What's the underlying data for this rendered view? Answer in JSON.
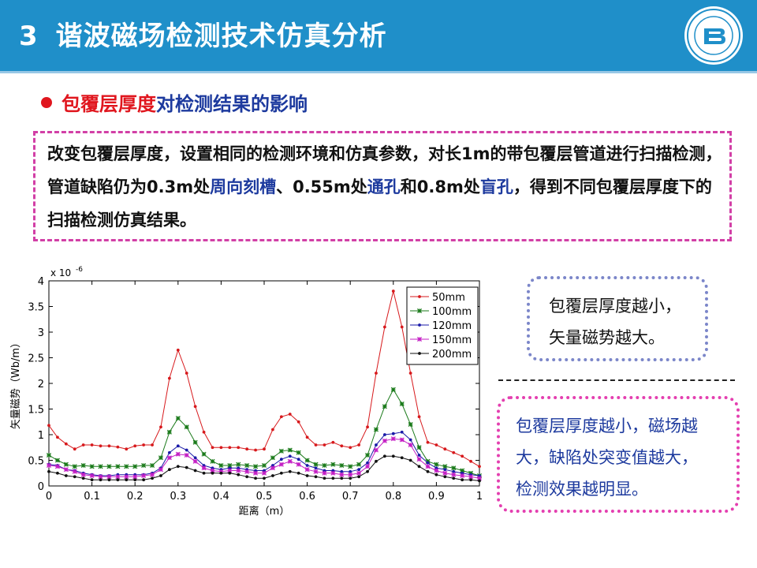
{
  "header": {
    "number": "3",
    "title": "谐波磁场检测技术仿真分析"
  },
  "subtitle": {
    "part1": "包覆层厚度",
    "part2": "对检测结果的影响"
  },
  "description": {
    "seg1": "改变包覆层厚度，设置相同的检测环境和仿真参数，对长1m的带包覆层管道进行扫描检测，管道缺陷仍为0.3m处",
    "hl1": "周向刻槽",
    "seg2": "、0.55m处",
    "hl2": "通孔",
    "seg3": "和0.8m处",
    "hl3": "盲孔",
    "seg4": "，得到不同包覆层厚度下的扫描检测仿真结果。"
  },
  "note_top": {
    "line1": "包覆层厚度越小，",
    "line2": "矢量磁势越大。"
  },
  "note_bottom": {
    "line1": "包覆层厚度越小，磁场越",
    "line2": "大，缺陷处突变值越大，",
    "line3": "检测效果越明显。"
  },
  "colors": {
    "header": "#1f8fc9",
    "accent_red": "#e0161e",
    "accent_blue": "#1d3a9e"
  },
  "chart_data": {
    "type": "line",
    "xlabel": "距离（m）",
    "ylabel": "矢量磁势（Wb/m）",
    "scale_label": "x 10",
    "scale_exp": "-6",
    "xlim": [
      0,
      1
    ],
    "ylim": [
      0,
      4
    ],
    "xticks": [
      "0",
      "0.1",
      "0.2",
      "0.3",
      "0.4",
      "0.5",
      "0.6",
      "0.7",
      "0.8",
      "0.9",
      "1"
    ],
    "yticks": [
      "0",
      "0.5",
      "1",
      "1.5",
      "2",
      "2.5",
      "3",
      "3.5",
      "4"
    ],
    "legend_position": "top-right",
    "x": [
      0,
      0.02,
      0.04,
      0.06,
      0.08,
      0.1,
      0.12,
      0.14,
      0.16,
      0.18,
      0.2,
      0.22,
      0.24,
      0.26,
      0.28,
      0.3,
      0.32,
      0.34,
      0.36,
      0.38,
      0.4,
      0.42,
      0.44,
      0.46,
      0.48,
      0.5,
      0.52,
      0.54,
      0.56,
      0.58,
      0.6,
      0.62,
      0.64,
      0.66,
      0.68,
      0.7,
      0.72,
      0.74,
      0.76,
      0.78,
      0.8,
      0.82,
      0.84,
      0.86,
      0.88,
      0.9,
      0.92,
      0.94,
      0.96,
      0.98,
      1.0
    ],
    "series": [
      {
        "name": "50mm",
        "color": "#d7191c",
        "marker": "dot",
        "values": [
          1.18,
          0.95,
          0.82,
          0.72,
          0.8,
          0.8,
          0.78,
          0.78,
          0.76,
          0.72,
          0.78,
          0.8,
          0.8,
          1.15,
          2.1,
          2.65,
          2.2,
          1.55,
          1.05,
          0.75,
          0.75,
          0.75,
          0.75,
          0.72,
          0.7,
          0.72,
          1.1,
          1.35,
          1.4,
          1.25,
          0.95,
          0.8,
          0.8,
          0.85,
          0.78,
          0.75,
          0.8,
          1.15,
          2.2,
          3.1,
          3.8,
          3.1,
          2.2,
          1.35,
          0.85,
          0.8,
          0.72,
          0.65,
          0.58,
          0.48,
          0.38
        ]
      },
      {
        "name": "100mm",
        "color": "#1a7a1a",
        "marker": "star",
        "values": [
          0.6,
          0.5,
          0.42,
          0.38,
          0.4,
          0.38,
          0.38,
          0.38,
          0.38,
          0.38,
          0.38,
          0.4,
          0.4,
          0.55,
          1.05,
          1.32,
          1.15,
          0.85,
          0.62,
          0.48,
          0.4,
          0.4,
          0.42,
          0.4,
          0.38,
          0.4,
          0.55,
          0.68,
          0.7,
          0.65,
          0.5,
          0.42,
          0.4,
          0.42,
          0.4,
          0.38,
          0.42,
          0.6,
          1.1,
          1.55,
          1.88,
          1.6,
          1.2,
          0.75,
          0.48,
          0.42,
          0.38,
          0.35,
          0.3,
          0.25,
          0.2
        ]
      },
      {
        "name": "120mm",
        "color": "#1a1aa8",
        "marker": "dot",
        "values": [
          0.42,
          0.4,
          0.32,
          0.3,
          0.25,
          0.22,
          0.2,
          0.2,
          0.22,
          0.22,
          0.22,
          0.22,
          0.25,
          0.35,
          0.65,
          0.78,
          0.7,
          0.55,
          0.4,
          0.35,
          0.32,
          0.35,
          0.35,
          0.32,
          0.3,
          0.3,
          0.4,
          0.52,
          0.58,
          0.52,
          0.4,
          0.35,
          0.3,
          0.3,
          0.28,
          0.28,
          0.32,
          0.45,
          0.8,
          1.0,
          1.02,
          1.05,
          0.9,
          0.6,
          0.45,
          0.35,
          0.32,
          0.28,
          0.25,
          0.22,
          0.2
        ]
      },
      {
        "name": "150mm",
        "color": "#c41ec4",
        "marker": "star",
        "values": [
          0.4,
          0.38,
          0.32,
          0.28,
          0.22,
          0.2,
          0.18,
          0.18,
          0.18,
          0.18,
          0.18,
          0.2,
          0.22,
          0.32,
          0.55,
          0.62,
          0.6,
          0.48,
          0.35,
          0.3,
          0.28,
          0.3,
          0.3,
          0.28,
          0.25,
          0.25,
          0.35,
          0.42,
          0.48,
          0.42,
          0.32,
          0.28,
          0.25,
          0.25,
          0.22,
          0.22,
          0.25,
          0.38,
          0.7,
          0.88,
          0.92,
          0.9,
          0.8,
          0.52,
          0.38,
          0.3,
          0.25,
          0.22,
          0.2,
          0.18,
          0.15
        ]
      },
      {
        "name": "200mm",
        "color": "#111111",
        "marker": "dot",
        "values": [
          0.28,
          0.25,
          0.2,
          0.18,
          0.15,
          0.12,
          0.12,
          0.12,
          0.12,
          0.12,
          0.12,
          0.12,
          0.15,
          0.2,
          0.32,
          0.38,
          0.36,
          0.3,
          0.25,
          0.25,
          0.25,
          0.25,
          0.22,
          0.18,
          0.15,
          0.15,
          0.2,
          0.25,
          0.28,
          0.25,
          0.2,
          0.18,
          0.15,
          0.15,
          0.15,
          0.15,
          0.18,
          0.28,
          0.48,
          0.58,
          0.58,
          0.55,
          0.5,
          0.38,
          0.28,
          0.22,
          0.18,
          0.15,
          0.12,
          0.12,
          0.1
        ]
      }
    ]
  }
}
